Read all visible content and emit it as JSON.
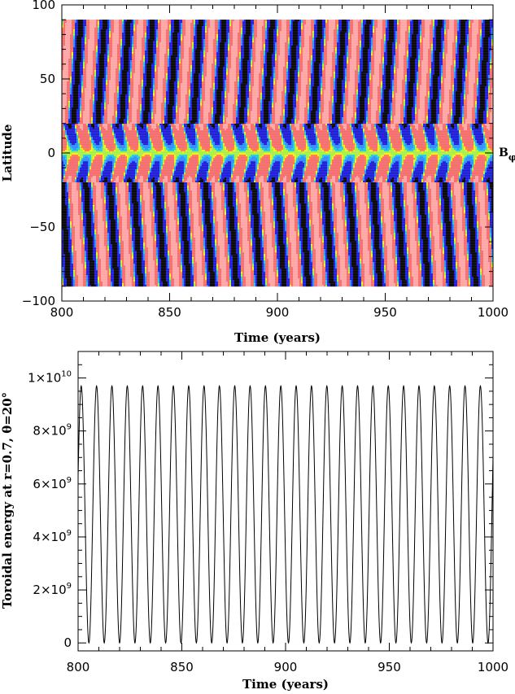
{
  "chart_data": [
    {
      "type": "heatmap",
      "title": "",
      "xlabel": "Time (years)",
      "ylabel": "Latitude",
      "xlim": [
        800,
        1000
      ],
      "ylim": [
        -100,
        100
      ],
      "x_ticks": [
        800,
        850,
        900,
        950,
        1000
      ],
      "y_ticks": [
        100,
        50,
        0,
        -50,
        -100
      ],
      "colorbar_label": "B",
      "colorbar_label_subscript": "φ",
      "cycle_period_years": 11.1,
      "latitude_extent": [
        -90,
        90
      ],
      "colormap": [
        "#000000",
        "#1a1ad6",
        "#2a8cff",
        "#22c8d8",
        "#a8ef40",
        "#f0f020",
        "#ff7a3c",
        "#f46a6a",
        "#ffa3a3"
      ],
      "legend": "none",
      "grid": false
    },
    {
      "type": "line",
      "title": "",
      "xlabel": "Time (years)",
      "ylabel": "Toroidal energy at r=0.7, θ=20°",
      "xlim": [
        800,
        1000
      ],
      "ylim": [
        -300000000.0,
        11000000000.0
      ],
      "x_ticks": [
        800,
        850,
        900,
        950,
        1000
      ],
      "y_ticks": [
        {
          "value": 0,
          "mantissa": "0",
          "exponent": ""
        },
        {
          "value": 2000000000.0,
          "mantissa": "2×10",
          "exponent": "9"
        },
        {
          "value": 4000000000.0,
          "mantissa": "4×10",
          "exponent": "9"
        },
        {
          "value": 6000000000.0,
          "mantissa": "6×10",
          "exponent": "9"
        },
        {
          "value": 8000000000.0,
          "mantissa": "8×10",
          "exponent": "9"
        },
        {
          "value": 10000000000.0,
          "mantissa": "1×10",
          "exponent": "10"
        }
      ],
      "series": [
        {
          "color": "#000000",
          "peak_value": 9700000000.0,
          "min_value": 0,
          "period_years": 7.4,
          "first_peak_year": 801.5
        }
      ],
      "legend": "none",
      "grid": false
    }
  ]
}
